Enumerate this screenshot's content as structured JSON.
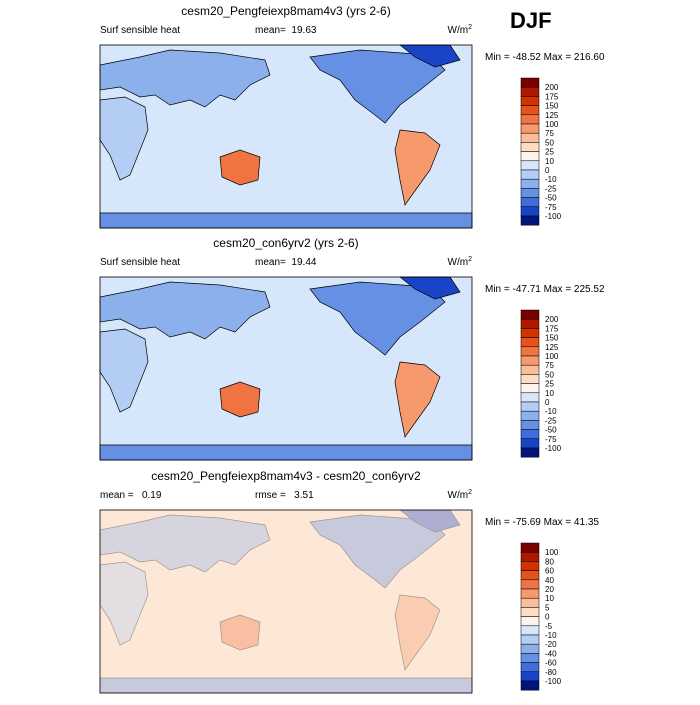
{
  "season": "DJF",
  "panels": [
    {
      "title": "cesm20_Pengfeiexp8mam4v3 (yrs 2-6)",
      "left_label": "Surf sensible heat",
      "center_label": "mean=  19.63",
      "units": {
        "base": "W/m",
        "exponent": "2"
      },
      "minmax": "Min = -48.52 Max = 216.60",
      "levels": [
        200,
        175,
        150,
        125,
        100,
        75,
        50,
        25,
        10,
        0,
        -10,
        -25,
        -50,
        -75,
        -100
      ]
    },
    {
      "title": "cesm20_con6yrv2 (yrs 2-6)",
      "left_label": "Surf sensible heat",
      "center_label": "mean=  19.44",
      "units": {
        "base": "W/m",
        "exponent": "2"
      },
      "minmax": "Min = -47.71 Max = 225.52",
      "levels": [
        200,
        175,
        150,
        125,
        100,
        75,
        50,
        25,
        10,
        0,
        -10,
        -25,
        -50,
        -75,
        -100
      ]
    },
    {
      "title": "cesm20_Pengfeiexp8mam4v3 - cesm20_con6yrv2",
      "left_label": "mean =   0.19",
      "center_label": "rmse =   3.51",
      "units": {
        "base": "W/m",
        "exponent": "2"
      },
      "minmax": "Min = -75.69 Max = 41.35",
      "levels": [
        100,
        80,
        60,
        40,
        20,
        10,
        5,
        0,
        -5,
        -10,
        -20,
        -40,
        -60,
        -80,
        -100
      ]
    }
  ],
  "colors": [
    "#7a0000",
    "#b01800",
    "#d23200",
    "#e6521c",
    "#f07442",
    "#f6996c",
    "#fbbc98",
    "#fddcc4",
    "#fff4ec",
    "#d6e6fb",
    "#b3cdf4",
    "#8cb0ec",
    "#6690e4",
    "#3f6ddc",
    "#1a44c8",
    "#00157a"
  ]
}
